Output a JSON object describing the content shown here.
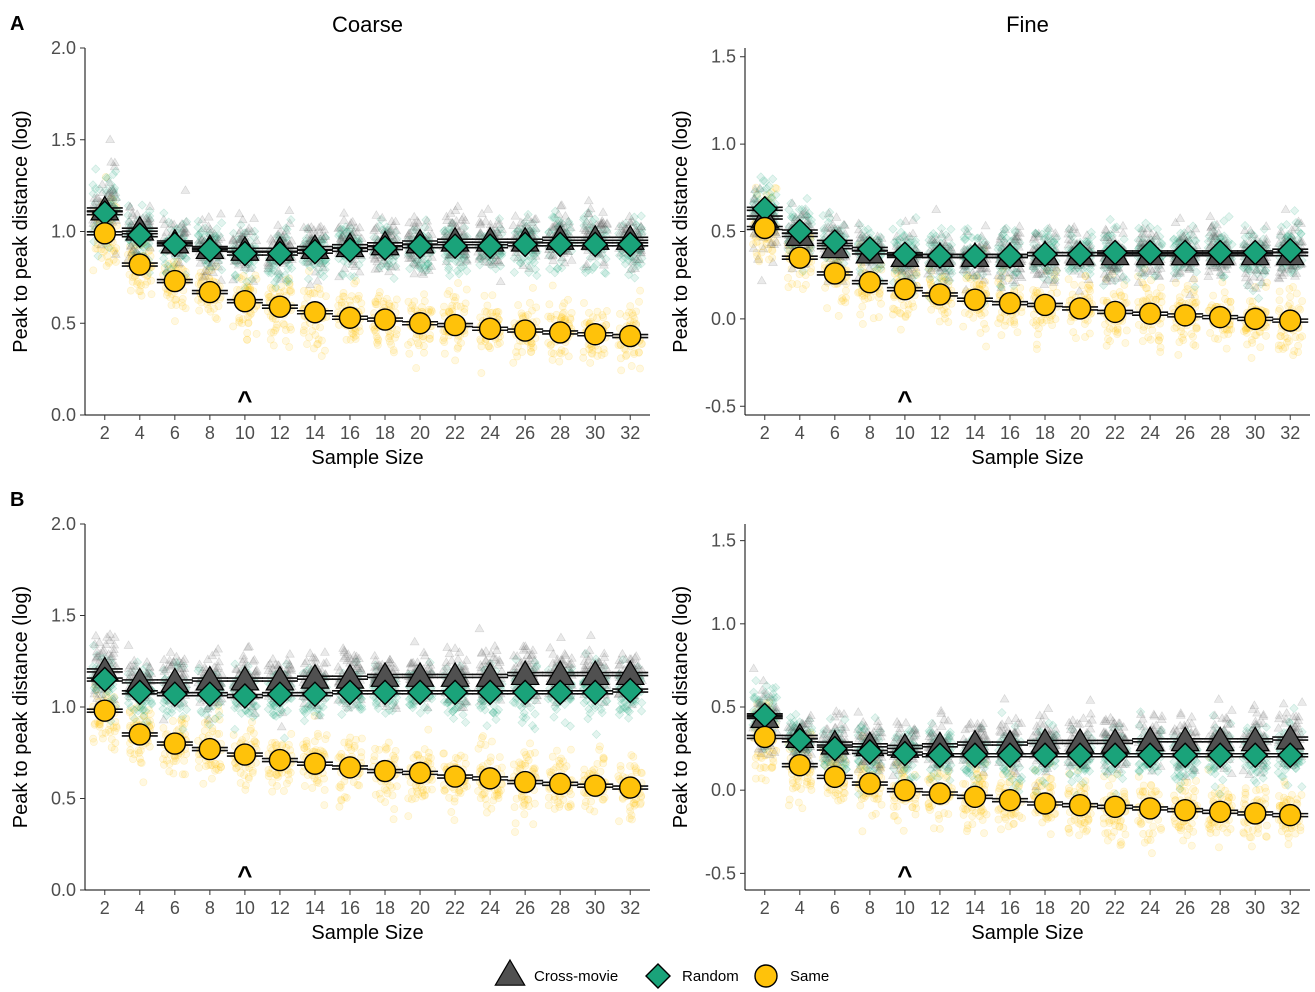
{
  "figure": {
    "legend": [
      {
        "label": "Cross-movie",
        "shape": "triangle",
        "color": "#505050"
      },
      {
        "label": "Random",
        "shape": "diamond",
        "color": "#1aa37a"
      },
      {
        "label": "Same",
        "shape": "circle",
        "color": "#ffc20a"
      }
    ],
    "colors": {
      "cross_movie": "#505050",
      "random": "#1aa37a",
      "same": "#ffc20a",
      "axis": "#000000",
      "tick_text": "#4d4d4d"
    }
  },
  "chart_data": [
    {
      "type": "scatter",
      "panel": "A",
      "title": "Coarse",
      "xlabel": "Sample Size",
      "ylabel": "Peak to peak distance (log)",
      "x": [
        2,
        4,
        6,
        8,
        10,
        12,
        14,
        16,
        18,
        20,
        22,
        24,
        26,
        28,
        30,
        32
      ],
      "x_ticks": [
        "2",
        "4",
        "6",
        "8",
        "10",
        "12",
        "14",
        "16",
        "18",
        "20",
        "22",
        "24",
        "26",
        "28",
        "30",
        "32"
      ],
      "y_ticks": [
        "0.0",
        "0.5",
        "1.0",
        "1.5",
        "2.0"
      ],
      "ylim": [
        0,
        2.0
      ],
      "annotation": {
        "text": "^",
        "x": 10
      },
      "series": [
        {
          "name": "Cross-movie",
          "values": [
            1.12,
            1.01,
            0.94,
            0.91,
            0.9,
            0.9,
            0.91,
            0.92,
            0.93,
            0.94,
            0.95,
            0.95,
            0.95,
            0.96,
            0.96,
            0.96
          ]
        },
        {
          "name": "Random",
          "values": [
            1.1,
            0.98,
            0.93,
            0.9,
            0.88,
            0.88,
            0.89,
            0.9,
            0.91,
            0.92,
            0.92,
            0.92,
            0.93,
            0.93,
            0.93,
            0.93
          ]
        },
        {
          "name": "Same",
          "values": [
            0.99,
            0.82,
            0.73,
            0.67,
            0.62,
            0.59,
            0.56,
            0.53,
            0.52,
            0.5,
            0.49,
            0.47,
            0.46,
            0.45,
            0.44,
            0.43
          ]
        }
      ]
    },
    {
      "type": "scatter",
      "panel": "",
      "title": "Fine",
      "xlabel": "Sample Size",
      "ylabel": "Peak to peak distance (log)",
      "x": [
        2,
        4,
        6,
        8,
        10,
        12,
        14,
        16,
        18,
        20,
        22,
        24,
        26,
        28,
        30,
        32
      ],
      "x_ticks": [
        "2",
        "4",
        "6",
        "8",
        "10",
        "12",
        "14",
        "16",
        "18",
        "20",
        "22",
        "24",
        "26",
        "28",
        "30",
        "32"
      ],
      "y_ticks": [
        "-0.5",
        "0.0",
        "0.5",
        "1.0",
        "1.5"
      ],
      "ylim": [
        -0.55,
        1.55
      ],
      "annotation": {
        "text": "^",
        "x": 10
      },
      "series": [
        {
          "name": "Cross-movie",
          "values": [
            0.58,
            0.48,
            0.41,
            0.38,
            0.36,
            0.36,
            0.36,
            0.36,
            0.37,
            0.37,
            0.37,
            0.37,
            0.37,
            0.37,
            0.37,
            0.37
          ]
        },
        {
          "name": "Random",
          "values": [
            0.63,
            0.5,
            0.44,
            0.4,
            0.37,
            0.36,
            0.36,
            0.36,
            0.37,
            0.37,
            0.38,
            0.38,
            0.38,
            0.38,
            0.38,
            0.39
          ]
        },
        {
          "name": "Same",
          "values": [
            0.52,
            0.35,
            0.26,
            0.21,
            0.17,
            0.14,
            0.11,
            0.09,
            0.08,
            0.06,
            0.04,
            0.03,
            0.02,
            0.01,
            0.0,
            -0.01
          ]
        }
      ]
    },
    {
      "type": "scatter",
      "panel": "B",
      "title": "",
      "xlabel": "Sample Size",
      "ylabel": "Peak to peak distance (log)",
      "x": [
        2,
        4,
        6,
        8,
        10,
        12,
        14,
        16,
        18,
        20,
        22,
        24,
        26,
        28,
        30,
        32
      ],
      "x_ticks": [
        "2",
        "4",
        "6",
        "8",
        "10",
        "12",
        "14",
        "16",
        "18",
        "20",
        "22",
        "24",
        "26",
        "28",
        "30",
        "32"
      ],
      "y_ticks": [
        "0.0",
        "0.5",
        "1.0",
        "1.5",
        "2.0"
      ],
      "ylim": [
        0,
        2.0
      ],
      "annotation": {
        "text": "^",
        "x": 10
      },
      "series": [
        {
          "name": "Cross-movie",
          "values": [
            1.2,
            1.14,
            1.14,
            1.15,
            1.15,
            1.15,
            1.16,
            1.16,
            1.17,
            1.17,
            1.17,
            1.17,
            1.18,
            1.18,
            1.18,
            1.18
          ]
        },
        {
          "name": "Random",
          "values": [
            1.15,
            1.08,
            1.07,
            1.07,
            1.06,
            1.07,
            1.07,
            1.08,
            1.08,
            1.08,
            1.08,
            1.08,
            1.08,
            1.08,
            1.08,
            1.09
          ]
        },
        {
          "name": "Same",
          "values": [
            0.98,
            0.85,
            0.8,
            0.77,
            0.74,
            0.71,
            0.69,
            0.67,
            0.65,
            0.64,
            0.62,
            0.61,
            0.59,
            0.58,
            0.57,
            0.56
          ]
        }
      ]
    },
    {
      "type": "scatter",
      "panel": "",
      "title": "",
      "xlabel": "Sample Size",
      "ylabel": "Peak to peak distance (log)",
      "x": [
        2,
        4,
        6,
        8,
        10,
        12,
        14,
        16,
        18,
        20,
        22,
        24,
        26,
        28,
        30,
        32
      ],
      "x_ticks": [
        "2",
        "4",
        "6",
        "8",
        "10",
        "12",
        "14",
        "16",
        "18",
        "20",
        "22",
        "24",
        "26",
        "28",
        "30",
        "32"
      ],
      "y_ticks": [
        "-0.5",
        "0.0",
        "0.5",
        "1.0",
        "1.5"
      ],
      "ylim": [
        -0.6,
        1.6
      ],
      "annotation": {
        "text": "^",
        "x": 10
      },
      "series": [
        {
          "name": "Cross-movie",
          "values": [
            0.44,
            0.32,
            0.28,
            0.27,
            0.26,
            0.27,
            0.28,
            0.28,
            0.29,
            0.29,
            0.29,
            0.3,
            0.3,
            0.3,
            0.3,
            0.31
          ]
        },
        {
          "name": "Random",
          "values": [
            0.45,
            0.3,
            0.25,
            0.23,
            0.22,
            0.21,
            0.21,
            0.21,
            0.21,
            0.21,
            0.21,
            0.21,
            0.21,
            0.21,
            0.21,
            0.21
          ]
        },
        {
          "name": "Same",
          "values": [
            0.32,
            0.15,
            0.08,
            0.04,
            0.0,
            -0.02,
            -0.04,
            -0.06,
            -0.08,
            -0.09,
            -0.1,
            -0.11,
            -0.12,
            -0.13,
            -0.14,
            -0.15
          ]
        }
      ]
    }
  ]
}
